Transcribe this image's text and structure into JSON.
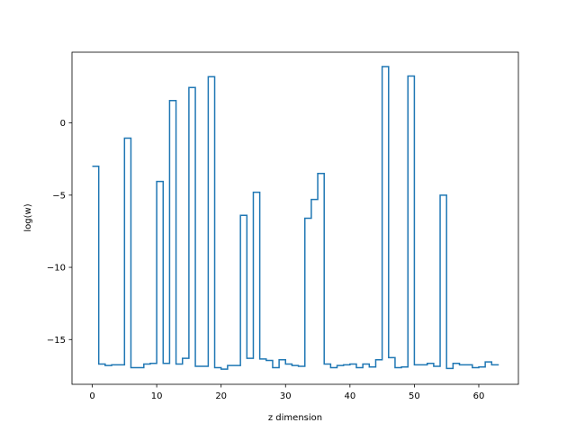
{
  "chart_data": {
    "type": "line",
    "drawstyle": "steps-post",
    "title": "",
    "xlabel": "z dimension",
    "ylabel": "log(w)",
    "xlim": [
      -3.15,
      66.15
    ],
    "ylim": [
      -18.1,
      4.9
    ],
    "xticks": [
      0,
      10,
      20,
      30,
      40,
      50,
      60
    ],
    "yticks": [
      -15,
      -10,
      -5,
      0
    ],
    "ytick_labels": [
      "−15",
      "−10",
      "−5",
      "0"
    ],
    "grid": false,
    "line_color": "#1f77b4",
    "series": [
      {
        "x": [
          0,
          1,
          2,
          3,
          4,
          5,
          6,
          7,
          8,
          9,
          10,
          11,
          12,
          13,
          14,
          15,
          16,
          17,
          18,
          19,
          20,
          21,
          22,
          23,
          24,
          25,
          26,
          27,
          28,
          29,
          30,
          31,
          32,
          33,
          34,
          35,
          36,
          37,
          38,
          39,
          40,
          41,
          42,
          43,
          44,
          45,
          46,
          47,
          48,
          49,
          50,
          51,
          52,
          53,
          54,
          55,
          56,
          57,
          58,
          59,
          60,
          61,
          62,
          63
        ],
        "values": [
          -3.0,
          -16.7,
          -16.8,
          -16.75,
          -16.75,
          -1.05,
          -16.95,
          -16.95,
          -16.7,
          -16.65,
          -4.05,
          -16.65,
          1.55,
          -16.7,
          -16.3,
          2.45,
          -16.85,
          -16.85,
          3.2,
          -16.95,
          -17.05,
          -16.8,
          -16.8,
          -6.4,
          -16.3,
          -4.8,
          -16.35,
          -16.45,
          -16.95,
          -16.4,
          -16.7,
          -16.8,
          -16.85,
          -6.6,
          -5.3,
          -3.5,
          -16.7,
          -16.95,
          -16.8,
          -16.75,
          -16.7,
          -16.95,
          -16.7,
          -16.9,
          -16.4,
          3.9,
          -16.25,
          -16.95,
          -16.9,
          3.25,
          -16.75,
          -16.75,
          -16.65,
          -16.85,
          -5.0,
          -17.0,
          -16.65,
          -16.75,
          -16.75,
          -16.95,
          -16.9,
          -16.55,
          -16.75,
          -16.8
        ]
      }
    ]
  }
}
